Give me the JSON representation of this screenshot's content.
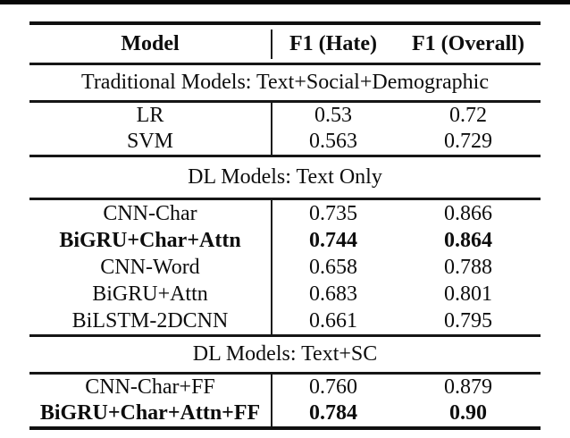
{
  "colors": {
    "background": "#ffffff",
    "text": "#0d0d0d",
    "rule": "#161616",
    "top_band": "#070707"
  },
  "table": {
    "columns": [
      "Model",
      "F1 (Hate)",
      "F1 (Overall)"
    ],
    "sections": [
      {
        "title": "Traditional Models: Text+Social+Demographic",
        "rows": [
          {
            "model": "LR",
            "f1_hate": "0.53",
            "f1_overall": "0.72",
            "bold": false
          },
          {
            "model": "SVM",
            "f1_hate": "0.563",
            "f1_overall": "0.729",
            "bold": false
          }
        ]
      },
      {
        "title": "DL Models: Text Only",
        "rows": [
          {
            "model": "CNN-Char",
            "f1_hate": "0.735",
            "f1_overall": "0.866",
            "bold": false
          },
          {
            "model": "BiGRU+Char+Attn",
            "f1_hate": "0.744",
            "f1_overall": "0.864",
            "bold": true
          },
          {
            "model": "CNN-Word",
            "f1_hate": "0.658",
            "f1_overall": "0.788",
            "bold": false
          },
          {
            "model": "BiGRU+Attn",
            "f1_hate": "0.683",
            "f1_overall": "0.801",
            "bold": false
          },
          {
            "model": "BiLSTM-2DCNN",
            "f1_hate": "0.661",
            "f1_overall": "0.795",
            "bold": false
          }
        ]
      },
      {
        "title": "DL Models: Text+SC",
        "rows": [
          {
            "model": "CNN-Char+FF",
            "f1_hate": "0.760",
            "f1_overall": "0.879",
            "bold": false
          },
          {
            "model": "BiGRU+Char+Attn+FF",
            "f1_hate": "0.784",
            "f1_overall": "0.90",
            "bold": true
          }
        ]
      }
    ]
  },
  "chart_data": {
    "type": "table",
    "title": "",
    "columns": [
      "Model",
      "F1 (Hate)",
      "F1 (Overall)"
    ],
    "rows": [
      [
        "LR",
        0.53,
        0.72
      ],
      [
        "SVM",
        0.563,
        0.729
      ],
      [
        "CNN-Char",
        0.735,
        0.866
      ],
      [
        "BiGRU+Char+Attn",
        0.744,
        0.864
      ],
      [
        "CNN-Word",
        0.658,
        0.788
      ],
      [
        "BiGRU+Attn",
        0.683,
        0.801
      ],
      [
        "BiLSTM-2DCNN",
        0.661,
        0.795
      ],
      [
        "CNN-Char+FF",
        0.76,
        0.879
      ],
      [
        "BiGRU+Char+Attn+FF",
        0.784,
        0.9
      ]
    ],
    "section_labels": [
      "Traditional Models: Text+Social+Demographic",
      "DL Models: Text Only",
      "DL Models: Text+SC"
    ],
    "bold_rows": [
      "BiGRU+Char+Attn",
      "BiGRU+Char+Attn+FF"
    ]
  }
}
